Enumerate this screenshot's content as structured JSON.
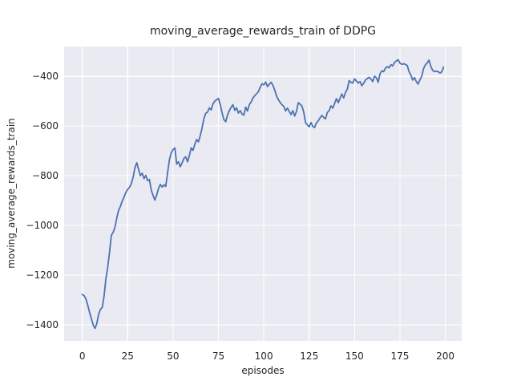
{
  "chart_data": {
    "type": "line",
    "title": "moving_average_rewards_train of DDPG",
    "xlabel": "episodes",
    "ylabel": "moving_average_rewards_train",
    "x_ticks": [
      0,
      25,
      50,
      75,
      100,
      125,
      150,
      175,
      200
    ],
    "x_tick_labels": [
      "0",
      "25",
      "50",
      "75",
      "100",
      "125",
      "150",
      "175",
      "200"
    ],
    "y_ticks": [
      -400,
      -600,
      -800,
      -1000,
      -1200,
      -1400
    ],
    "y_tick_labels": [
      "−400",
      "−600",
      "−800",
      "−1000",
      "−1200",
      "−1400"
    ],
    "xlim": [
      -10,
      209
    ],
    "ylim": [
      -1465,
      -280
    ],
    "grid": true,
    "legend": "none",
    "style": "seaborn-darkgrid",
    "colors": {
      "line": "#4c72b0",
      "plot_background": "#eaeaf2",
      "grid": "#ffffff",
      "text": "#262626",
      "figure_background": "#ffffff"
    },
    "series": [
      {
        "name": "moving_average_rewards_train",
        "x_start": 0,
        "x_step": 1,
        "values": [
          -1278,
          -1283,
          -1296,
          -1320,
          -1350,
          -1376,
          -1400,
          -1415,
          -1395,
          -1358,
          -1338,
          -1330,
          -1285,
          -1215,
          -1168,
          -1110,
          -1040,
          -1028,
          -1008,
          -970,
          -940,
          -924,
          -902,
          -886,
          -868,
          -855,
          -847,
          -833,
          -806,
          -768,
          -748,
          -775,
          -800,
          -790,
          -812,
          -799,
          -820,
          -815,
          -858,
          -880,
          -898,
          -878,
          -851,
          -835,
          -846,
          -837,
          -843,
          -787,
          -735,
          -708,
          -695,
          -688,
          -753,
          -744,
          -764,
          -748,
          -730,
          -724,
          -744,
          -718,
          -688,
          -698,
          -673,
          -654,
          -664,
          -638,
          -608,
          -570,
          -549,
          -544,
          -527,
          -535,
          -511,
          -500,
          -494,
          -489,
          -513,
          -546,
          -574,
          -583,
          -556,
          -538,
          -524,
          -514,
          -537,
          -527,
          -548,
          -538,
          -552,
          -556,
          -524,
          -540,
          -514,
          -503,
          -488,
          -478,
          -470,
          -462,
          -444,
          -430,
          -434,
          -423,
          -441,
          -432,
          -424,
          -436,
          -455,
          -479,
          -494,
          -505,
          -514,
          -521,
          -539,
          -528,
          -541,
          -554,
          -538,
          -560,
          -541,
          -506,
          -512,
          -520,
          -545,
          -586,
          -596,
          -603,
          -586,
          -602,
          -606,
          -587,
          -579,
          -567,
          -557,
          -566,
          -571,
          -545,
          -538,
          -519,
          -528,
          -509,
          -490,
          -506,
          -488,
          -471,
          -487,
          -464,
          -452,
          -417,
          -424,
          -427,
          -410,
          -419,
          -427,
          -421,
          -438,
          -428,
          -415,
          -409,
          -404,
          -411,
          -421,
          -399,
          -406,
          -424,
          -390,
          -378,
          -381,
          -367,
          -361,
          -366,
          -353,
          -358,
          -344,
          -338,
          -333,
          -347,
          -352,
          -349,
          -352,
          -357,
          -381,
          -395,
          -415,
          -405,
          -421,
          -431,
          -414,
          -399,
          -369,
          -354,
          -346,
          -335,
          -360,
          -376,
          -381,
          -379,
          -381,
          -387,
          -382,
          -363
        ]
      }
    ]
  }
}
